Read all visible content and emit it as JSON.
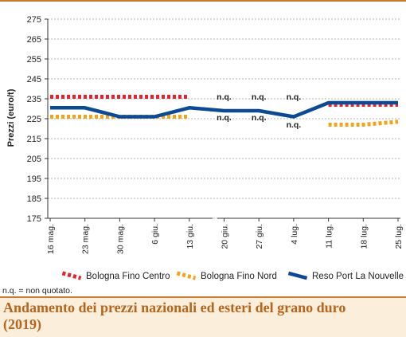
{
  "chart_data": {
    "type": "line",
    "ylabel": "Prezzi (euro/t)",
    "ylim": [
      175,
      275
    ],
    "yticks": [
      175,
      185,
      195,
      205,
      215,
      225,
      235,
      245,
      255,
      265,
      275
    ],
    "categories": [
      "16 mag.",
      "23 mag.",
      "30 mag.",
      "6 giu.",
      "13 giu.",
      "20 giu.",
      "27 giu.",
      "4 lug.",
      "11 lug.",
      "18 lug.",
      "25 lug."
    ],
    "series": [
      {
        "name": "Bologna Fino Centro",
        "color": "#e8222d",
        "style": "dotted",
        "values": [
          236,
          236,
          236,
          236,
          236,
          null,
          null,
          null,
          232,
          232,
          232
        ]
      },
      {
        "name": "Bologna Fino Nord",
        "color": "#f3a21c",
        "style": "dotted",
        "values": [
          226,
          226,
          226,
          226,
          226,
          null,
          null,
          null,
          222,
          222,
          223.5
        ]
      },
      {
        "name": "Reso Port La Nouvelle",
        "color": "#0d4a94",
        "style": "solid",
        "values": [
          230.5,
          230.5,
          226,
          226,
          230.5,
          229,
          229,
          226,
          233,
          233,
          233
        ]
      }
    ],
    "annotations": [
      {
        "category": "20 giu.",
        "text": "n.q."
      },
      {
        "category": "27 giu.",
        "text": "n.q."
      },
      {
        "category": "4 lug.",
        "text": "n.q."
      }
    ],
    "grid": "horizontal dashed",
    "legend": "bottom"
  },
  "note": "n.q. = non quotato.",
  "title": "Andamento dei prezzi nazionali ed esteri del grano duro (2019)"
}
